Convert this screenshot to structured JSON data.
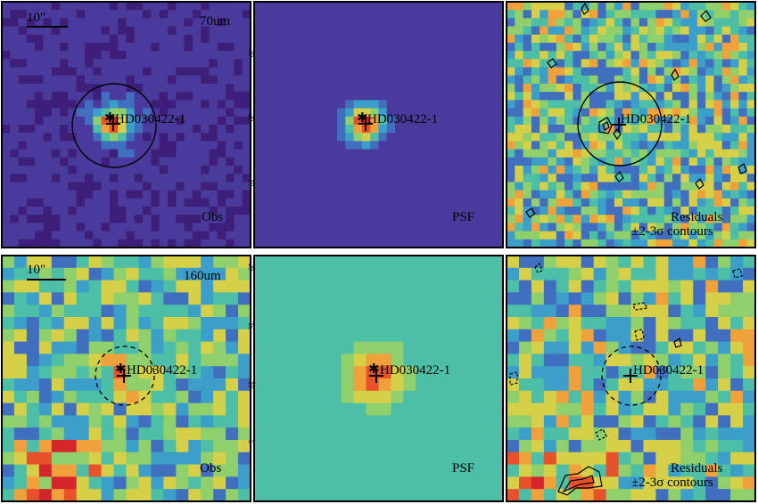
{
  "panels": [
    {
      "id": "obs70",
      "row": 0,
      "col": 0,
      "kind": "obs",
      "band": "70um",
      "label": "Obs",
      "scalebar": "10\"",
      "source": "HD030422-1",
      "aperture": "solid"
    },
    {
      "id": "psf70",
      "row": 0,
      "col": 1,
      "kind": "psf",
      "band": "",
      "label": "PSF",
      "scalebar": "",
      "source": "HD030422-1",
      "aperture": "none"
    },
    {
      "id": "res70",
      "row": 0,
      "col": 2,
      "kind": "res",
      "band": "",
      "label": "Residuals",
      "label2": "±2-3σ contours",
      "scalebar": "",
      "source": "HD030422-1",
      "aperture": "solid"
    },
    {
      "id": "obs160",
      "row": 1,
      "col": 0,
      "kind": "obs",
      "band": "160um",
      "label": "Obs",
      "scalebar": "10\"",
      "source": "HD030422-1",
      "aperture": "dashed"
    },
    {
      "id": "psf160",
      "row": 1,
      "col": 1,
      "kind": "psf",
      "band": "",
      "label": "PSF",
      "scalebar": "",
      "source": "HD030422-1",
      "aperture": "none"
    },
    {
      "id": "res160",
      "row": 1,
      "col": 2,
      "kind": "res",
      "band": "",
      "label": "Residuals",
      "label2": "±2-3σ contours",
      "scalebar": "",
      "source": "HD030422-1",
      "aperture": "dashed"
    }
  ],
  "axis_ticks": {
    "psf70": [
      "30",
      "20",
      "10"
    ],
    "psf160": [
      "20",
      "15",
      "10",
      "5"
    ]
  },
  "colors": {
    "purple_bg": "#4b2f8c",
    "psf70_bg": "#3f3f9e",
    "psf160_bg": "#63b494",
    "hot": "#e8452a",
    "frame": "#000000"
  },
  "colormap": [
    "#3d1f7a",
    "#4a3a9c",
    "#3f6fbe",
    "#3b9fc9",
    "#4cbfa6",
    "#8fcf6c",
    "#d6d049",
    "#f0a13b",
    "#e8522a",
    "#d4262a"
  ]
}
